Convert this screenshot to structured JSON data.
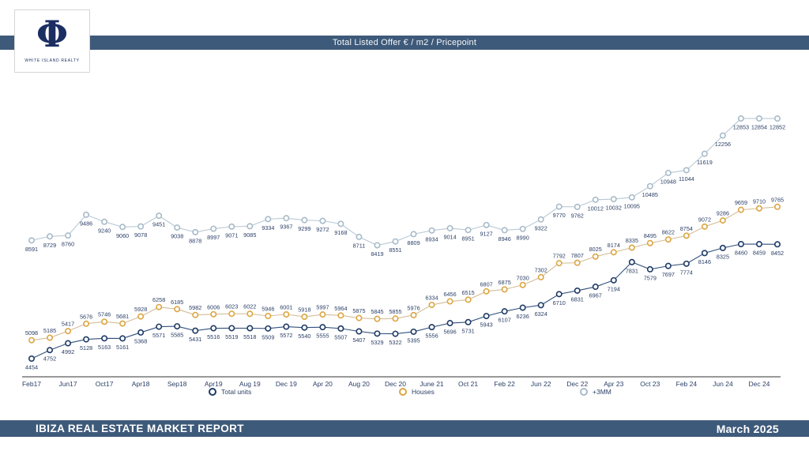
{
  "brand": {
    "symbol": "Φ",
    "name": "WHITE ISLAND REALTY"
  },
  "header": {
    "title": "Total Listed Offer € / m2 / Pricepoint"
  },
  "footer": {
    "report_title": "IBIZA REAL ESTATE MARKET REPORT",
    "date": "March 2025"
  },
  "colors": {
    "bar_background": "#3e5a7a",
    "label_text": "#2b3f66",
    "axis_line": "#333333"
  },
  "chart_data": {
    "type": "line",
    "title": "Total Listed Offer € / m2 / Pricepoint",
    "grid": false,
    "legend_position": "bottom",
    "data_labels": true,
    "ylim": [
      4200,
      13100
    ],
    "tick_every_n_points": 2,
    "x_tick_labels": [
      "Feb17",
      "Jun17",
      "Oct17",
      "Apr18",
      "Sep18",
      "Apr19",
      "Aug 19",
      "Dec 19",
      "Apr 20",
      "Aug 20",
      "Dec 20",
      "June 21",
      "Oct 21",
      "Feb 22",
      "Jun 22",
      "Dec 22",
      "Apr 23",
      "Oct 23",
      "Feb 24",
      "Jun 24",
      "Dec 24"
    ],
    "series": [
      {
        "name": "Total units",
        "marker_color": "#1e3a66",
        "line_color": "#32507c",
        "label_position": "below",
        "values": [
          4454,
          4752,
          4992,
          5128,
          5163,
          5161,
          5368,
          5571,
          5585,
          5431,
          5516,
          5519,
          5518,
          5509,
          5572,
          5540,
          5555,
          5507,
          5407,
          5329,
          5322,
          5395,
          5556,
          5696,
          5731,
          5943,
          6107,
          6236,
          6324,
          6710,
          6831,
          6967,
          7194,
          7831,
          7579,
          7697,
          7774,
          8146,
          8325,
          8460,
          8459,
          8452
        ]
      },
      {
        "name": "Houses",
        "marker_color": "#dca642",
        "line_color": "#d4bd97",
        "label_position": "above",
        "values": [
          5098,
          5185,
          5417,
          5676,
          5746,
          5681,
          5928,
          6258,
          6185,
          5982,
          6006,
          6023,
          6022,
          5946,
          6001,
          5918,
          5997,
          5964,
          5875,
          5845,
          5855,
          5976,
          6334,
          6456,
          6515,
          6807,
          6875,
          7030,
          7302,
          7792,
          7807,
          8025,
          8174,
          8335,
          8495,
          8622,
          8754,
          9072,
          9286,
          9659,
          9710,
          9765
        ]
      },
      {
        "name": "+3MM",
        "marker_color": "#a8bbc9",
        "line_color": "#b9c8d3",
        "label_position": "below",
        "values": [
          8591,
          8729,
          8760,
          9486,
          9240,
          9060,
          9078,
          9451,
          9038,
          8878,
          8997,
          9071,
          9085,
          9334,
          9367,
          9299,
          9272,
          9168,
          8711,
          8419,
          8551,
          8809,
          8934,
          9014,
          8951,
          9127,
          8946,
          8990,
          9322,
          9770,
          9762,
          10012,
          10032,
          10095,
          10485,
          10948,
          11044,
          11619,
          12256,
          12853,
          12854,
          12852
        ]
      }
    ]
  }
}
